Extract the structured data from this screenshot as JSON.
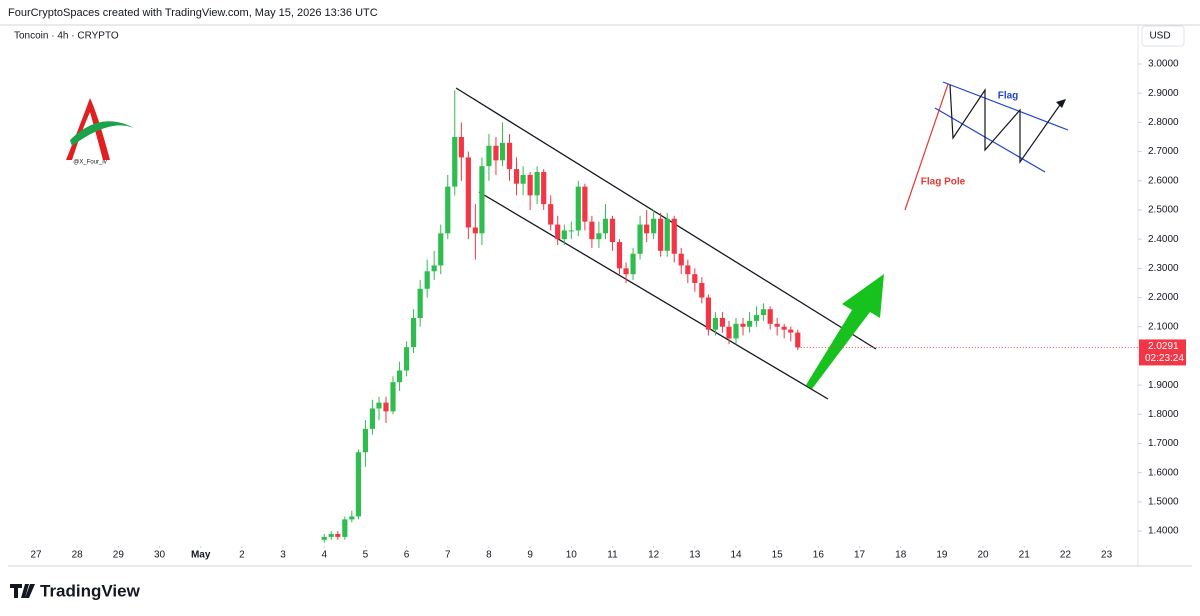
{
  "header": "FourCryptoSpaces created with TradingView.com, May 15, 2026 13:36 UTC",
  "brand": "TradingView",
  "watermark": "@X_Four_iv",
  "chart_data": {
    "type": "candlestick",
    "title": "Toncoin · 4h · CRYPTO",
    "currency": "USD",
    "x": [
      7.0,
      7.17,
      7.33,
      7.5,
      7.67,
      7.83,
      8.0,
      8.17,
      8.33,
      8.5,
      8.67,
      8.83,
      9.0,
      9.17,
      9.33,
      9.5,
      9.67,
      9.83,
      10.0,
      10.17,
      10.33,
      10.5,
      10.67,
      10.83,
      11.0,
      11.17,
      11.33,
      11.5,
      11.67,
      11.83,
      12.0,
      12.17,
      12.33,
      12.5,
      12.67,
      12.83,
      13.0,
      13.17,
      13.33,
      13.5,
      13.67,
      13.83,
      14.0,
      14.17,
      14.33,
      14.5,
      14.67,
      14.83,
      15.0,
      15.17,
      15.33,
      15.5,
      15.67,
      15.83,
      16.0,
      16.17,
      16.33,
      16.5,
      16.67,
      16.83,
      17.0,
      17.17,
      17.33,
      17.5,
      17.67,
      17.83,
      18.0,
      18.17,
      18.33,
      18.5
    ],
    "open": [
      1.37,
      1.38,
      1.39,
      1.38,
      1.44,
      1.45,
      1.67,
      1.75,
      1.82,
      1.84,
      1.81,
      1.91,
      1.95,
      2.03,
      2.13,
      2.23,
      2.29,
      2.31,
      2.42,
      2.58,
      2.75,
      2.68,
      2.44,
      2.42,
      2.65,
      2.72,
      2.67,
      2.73,
      2.64,
      2.59,
      2.62,
      2.55,
      2.63,
      2.52,
      2.45,
      2.4,
      2.43,
      2.43,
      2.58,
      2.46,
      2.4,
      2.42,
      2.47,
      2.39,
      2.3,
      2.28,
      2.35,
      2.45,
      2.42,
      2.47,
      2.36,
      2.47,
      2.35,
      2.31,
      2.28,
      2.25,
      2.2,
      2.09,
      2.13,
      2.1,
      2.06,
      2.11,
      2.1,
      2.12,
      2.14,
      2.16,
      2.11,
      2.1,
      2.09,
      2.08
    ],
    "high": [
      1.39,
      1.4,
      1.4,
      1.45,
      1.47,
      1.68,
      1.78,
      1.85,
      1.86,
      1.86,
      1.93,
      1.98,
      2.05,
      2.16,
      2.26,
      2.33,
      2.36,
      2.45,
      2.62,
      2.91,
      2.8,
      2.7,
      2.52,
      2.68,
      2.76,
      2.75,
      2.8,
      2.76,
      2.68,
      2.65,
      2.63,
      2.65,
      2.64,
      2.55,
      2.48,
      2.45,
      2.46,
      2.6,
      2.59,
      2.48,
      2.46,
      2.52,
      2.48,
      2.4,
      2.32,
      2.37,
      2.48,
      2.5,
      2.5,
      2.49,
      2.49,
      2.48,
      2.37,
      2.33,
      2.3,
      2.27,
      2.21,
      2.15,
      2.15,
      2.12,
      2.13,
      2.13,
      2.15,
      2.17,
      2.18,
      2.17,
      2.13,
      2.11,
      2.1,
      2.09
    ],
    "low": [
      1.36,
      1.37,
      1.37,
      1.37,
      1.43,
      1.44,
      1.62,
      1.73,
      1.78,
      1.77,
      1.8,
      1.88,
      1.93,
      2.01,
      2.1,
      2.2,
      2.26,
      2.28,
      2.4,
      2.55,
      2.6,
      2.4,
      2.33,
      2.38,
      2.6,
      2.62,
      2.65,
      2.6,
      2.55,
      2.55,
      2.5,
      2.52,
      2.5,
      2.43,
      2.38,
      2.38,
      2.4,
      2.41,
      2.43,
      2.37,
      2.37,
      2.4,
      2.36,
      2.28,
      2.25,
      2.26,
      2.33,
      2.39,
      2.4,
      2.34,
      2.34,
      2.32,
      2.28,
      2.25,
      2.22,
      2.18,
      2.07,
      2.07,
      2.08,
      2.04,
      2.04,
      2.07,
      2.08,
      2.1,
      2.12,
      2.09,
      2.07,
      2.06,
      2.05,
      2.02
    ],
    "close": [
      1.38,
      1.39,
      1.38,
      1.44,
      1.45,
      1.67,
      1.75,
      1.82,
      1.84,
      1.81,
      1.91,
      1.95,
      2.03,
      2.13,
      2.23,
      2.29,
      2.31,
      2.42,
      2.58,
      2.75,
      2.68,
      2.44,
      2.42,
      2.65,
      2.72,
      2.67,
      2.73,
      2.64,
      2.59,
      2.62,
      2.55,
      2.63,
      2.52,
      2.45,
      2.4,
      2.43,
      2.43,
      2.58,
      2.46,
      2.4,
      2.42,
      2.47,
      2.39,
      2.3,
      2.28,
      2.35,
      2.45,
      2.42,
      2.47,
      2.36,
      2.47,
      2.35,
      2.31,
      2.28,
      2.25,
      2.2,
      2.09,
      2.13,
      2.1,
      2.06,
      2.11,
      2.1,
      2.12,
      2.14,
      2.16,
      2.11,
      2.1,
      2.09,
      2.08,
      2.0291
    ],
    "up_color": "#2ebd4e",
    "down_color": "#f23645",
    "last_price": 2.0291,
    "countdown": "02:23:24",
    "annotations": [
      "Flag",
      "Flag Pole"
    ],
    "xlim": [
      -0.68,
      26.69
    ],
    "xticks": [
      {
        "value": 0,
        "label": "27"
      },
      {
        "value": 1,
        "label": "28"
      },
      {
        "value": 2,
        "label": "29"
      },
      {
        "value": 3,
        "label": "30"
      },
      {
        "value": 4,
        "label": "May"
      },
      {
        "value": 5,
        "label": "2"
      },
      {
        "value": 6,
        "label": "3"
      },
      {
        "value": 7,
        "label": "4"
      },
      {
        "value": 8,
        "label": "5"
      },
      {
        "value": 9,
        "label": "6"
      },
      {
        "value": 10,
        "label": "7"
      },
      {
        "value": 11,
        "label": "8"
      },
      {
        "value": 12,
        "label": "9"
      },
      {
        "value": 13,
        "label": "10"
      },
      {
        "value": 14,
        "label": "11"
      },
      {
        "value": 15,
        "label": "12"
      },
      {
        "value": 16,
        "label": "13"
      },
      {
        "value": 17,
        "label": "14"
      },
      {
        "value": 18,
        "label": "15"
      },
      {
        "value": 19,
        "label": "16"
      },
      {
        "value": 20,
        "label": "17"
      },
      {
        "value": 21,
        "label": "18"
      },
      {
        "value": 22,
        "label": "19"
      },
      {
        "value": 23,
        "label": "20"
      },
      {
        "value": 24,
        "label": "21"
      },
      {
        "value": 25,
        "label": "22"
      },
      {
        "value": 26,
        "label": "23"
      }
    ],
    "ylim": [
      1.342,
      3.048
    ],
    "yticks": [
      {
        "value": 1.4,
        "label": "1.4000"
      },
      {
        "value": 1.5,
        "label": "1.5000"
      },
      {
        "value": 1.6,
        "label": "1.6000"
      },
      {
        "value": 1.7,
        "label": "1.7000"
      },
      {
        "value": 1.8,
        "label": "1.8000"
      },
      {
        "value": 1.9,
        "label": "1.9000"
      },
      {
        "value": 2.1,
        "label": "2.1000"
      },
      {
        "value": 2.2,
        "label": "2.2000"
      },
      {
        "value": 2.3,
        "label": "2.3000"
      },
      {
        "value": 2.4,
        "label": "2.4000"
      },
      {
        "value": 2.5,
        "label": "2.5000"
      },
      {
        "value": 2.6,
        "label": "2.6000"
      },
      {
        "value": 2.7,
        "label": "2.7000"
      },
      {
        "value": 2.8,
        "label": "2.8000"
      },
      {
        "value": 2.9,
        "label": "2.9000"
      },
      {
        "value": 3.0,
        "label": "3.0000"
      }
    ],
    "grid": false
  }
}
